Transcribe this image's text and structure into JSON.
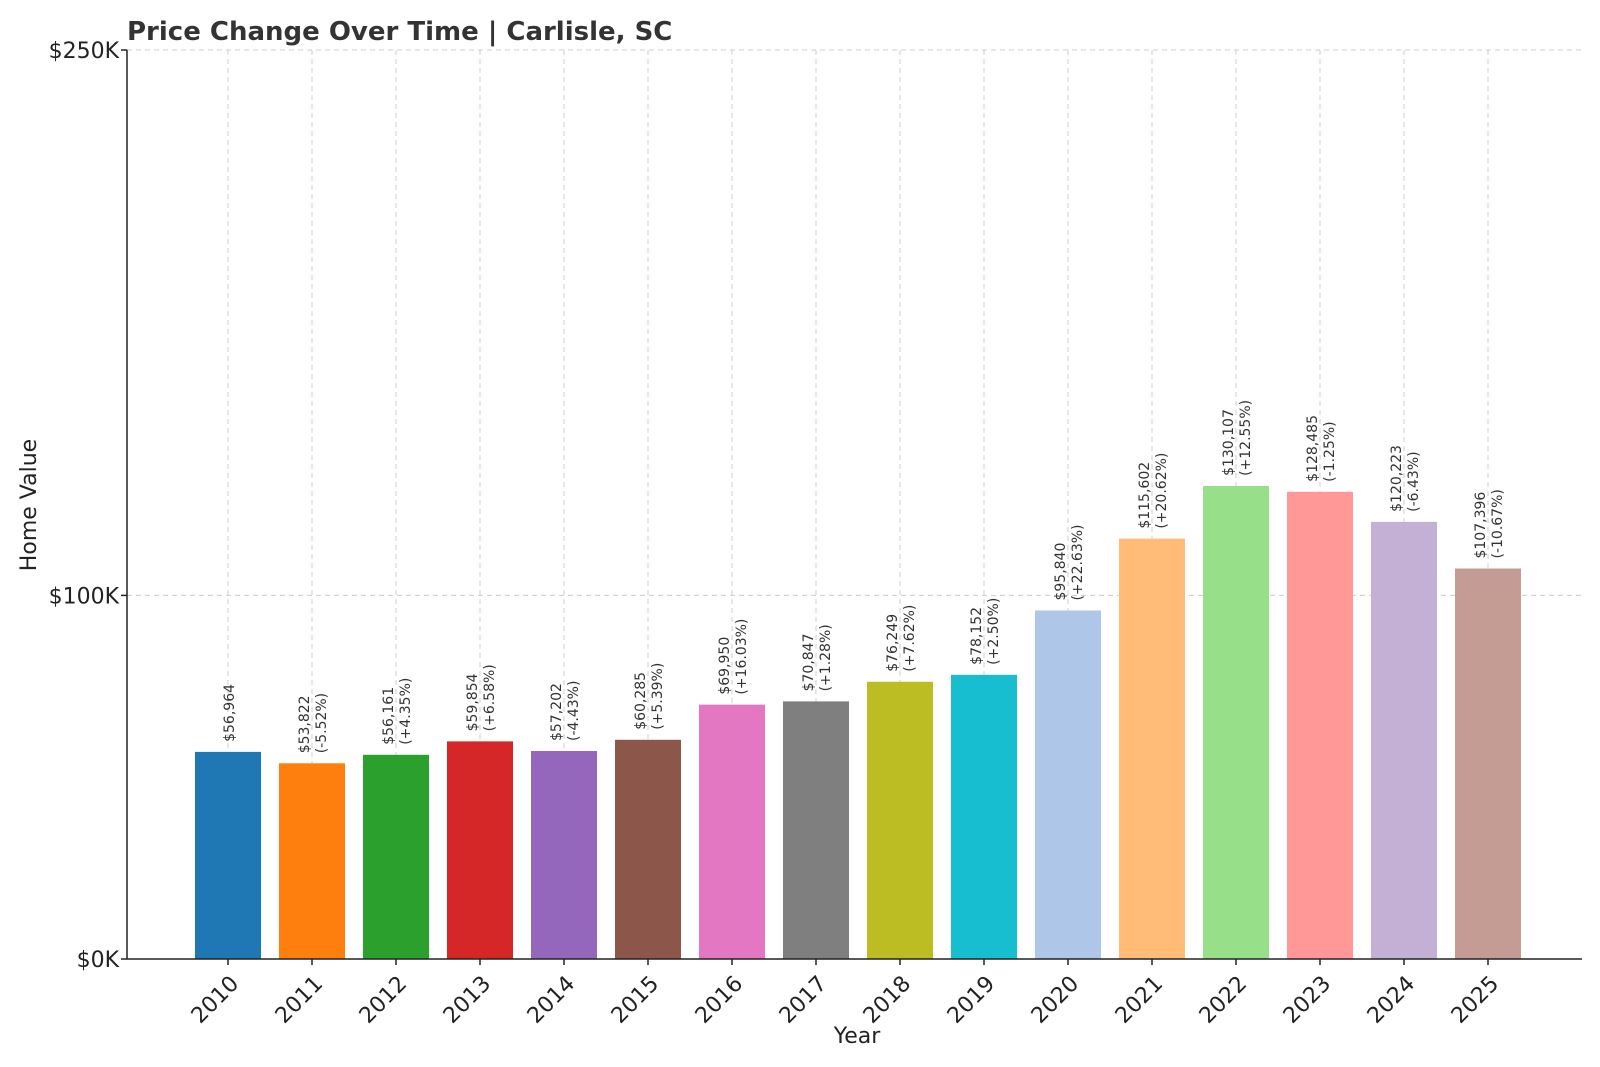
{
  "chart_data": {
    "type": "bar",
    "title": "Price Change Over Time | Carlisle, SC",
    "xlabel": "Year",
    "ylabel": "Home Value",
    "ylim": [
      0,
      250000
    ],
    "y_ticks": [
      {
        "value": 0,
        "label": "$0K"
      },
      {
        "value": 100000,
        "label": "$100K"
      },
      {
        "value": 250000,
        "label": "$250K"
      }
    ],
    "grid": true,
    "categories": [
      "2010",
      "2011",
      "2012",
      "2013",
      "2014",
      "2015",
      "2016",
      "2017",
      "2018",
      "2019",
      "2020",
      "2021",
      "2022",
      "2023",
      "2024",
      "2025"
    ],
    "values": [
      56964,
      53822,
      56161,
      59854,
      57202,
      60285,
      69950,
      70847,
      76249,
      78152,
      95840,
      115602,
      130107,
      128485,
      120223,
      107396
    ],
    "value_labels": [
      "$56,964",
      "$53,822",
      "$56,161",
      "$59,854",
      "$57,202",
      "$60,285",
      "$69,950",
      "$70,847",
      "$76,249",
      "$78,152",
      "$95,840",
      "$115,602",
      "$130,107",
      "$128,485",
      "$120,223",
      "$107,396"
    ],
    "change_labels": [
      "",
      "(-5.52%)",
      "(+4.35%)",
      "(+6.58%)",
      "(-4.43%)",
      "(+5.39%)",
      "(+16.03%)",
      "(+1.28%)",
      "(+7.62%)",
      "(+2.50%)",
      "(+22.63%)",
      "(+20.62%)",
      "(+12.55%)",
      "(-1.25%)",
      "(-6.43%)",
      "(-10.67%)"
    ],
    "colors": [
      "#1f77b4",
      "#ff7f0e",
      "#2ca02c",
      "#d62728",
      "#9467bd",
      "#8c564b",
      "#e377c2",
      "#7f7f7f",
      "#bcbd22",
      "#17becf",
      "#aec7e8",
      "#ffbb78",
      "#98df8a",
      "#ff9896",
      "#c5b0d5",
      "#c49c94"
    ]
  }
}
